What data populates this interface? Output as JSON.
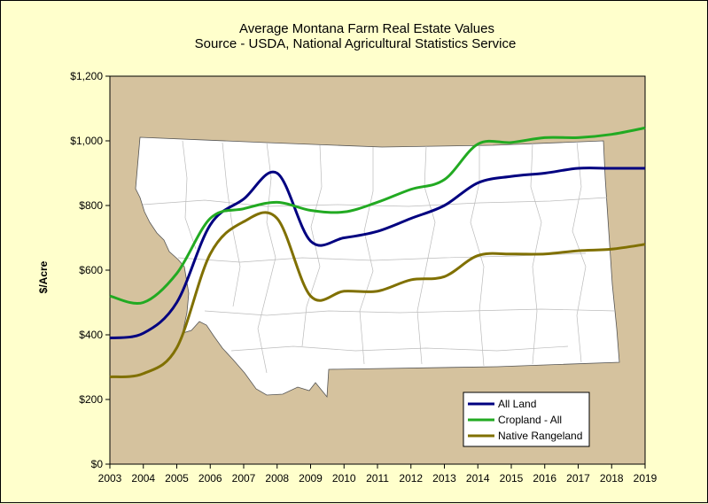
{
  "chart_data": {
    "type": "line",
    "title": "Average Montana Farm Real Estate Values",
    "subtitle": "Source - USDA, National Agricultural Statistics Service",
    "xlabel": "",
    "ylabel": "$/Acre",
    "xlim": [
      2003,
      2019
    ],
    "ylim": [
      0,
      1200
    ],
    "x_ticks": [
      "2003",
      "2004",
      "2005",
      "2006",
      "2007",
      "2008",
      "2009",
      "2010",
      "2011",
      "2012",
      "2013",
      "2014",
      "2015",
      "2016",
      "2017",
      "2018",
      "2019"
    ],
    "y_ticks": [
      "$0",
      "$200",
      "$400",
      "$600",
      "$800",
      "$1,000",
      "$1,200"
    ],
    "y_tick_values": [
      0,
      200,
      400,
      600,
      800,
      1000,
      1200
    ],
    "grid": false,
    "legend_position": "bottom-right",
    "background_image": "montana-map",
    "plot_background": "#d5c29e",
    "series": [
      {
        "name": "All Land",
        "color": "#000080",
        "x": [
          2003,
          2004,
          2005,
          2006,
          2007,
          2008,
          2009,
          2010,
          2011,
          2012,
          2013,
          2014,
          2015,
          2016,
          2017,
          2018,
          2019
        ],
        "values": [
          390,
          405,
          500,
          740,
          820,
          900,
          690,
          700,
          720,
          760,
          800,
          870,
          890,
          900,
          915,
          915,
          915
        ]
      },
      {
        "name": "Cropland - All",
        "color": "#22aa22",
        "x": [
          2003,
          2004,
          2005,
          2006,
          2007,
          2008,
          2009,
          2010,
          2011,
          2012,
          2013,
          2014,
          2015,
          2016,
          2017,
          2018,
          2019
        ],
        "values": [
          520,
          500,
          590,
          760,
          790,
          810,
          785,
          780,
          810,
          850,
          880,
          990,
          995,
          1010,
          1010,
          1020,
          1040
        ]
      },
      {
        "name": "Native Rangeland",
        "color": "#807000",
        "x": [
          2003,
          2004,
          2005,
          2006,
          2007,
          2008,
          2009,
          2010,
          2011,
          2012,
          2013,
          2014,
          2015,
          2016,
          2017,
          2018,
          2019
        ],
        "values": [
          270,
          280,
          360,
          650,
          750,
          760,
          520,
          535,
          535,
          570,
          580,
          645,
          650,
          650,
          660,
          665,
          680
        ]
      }
    ]
  }
}
